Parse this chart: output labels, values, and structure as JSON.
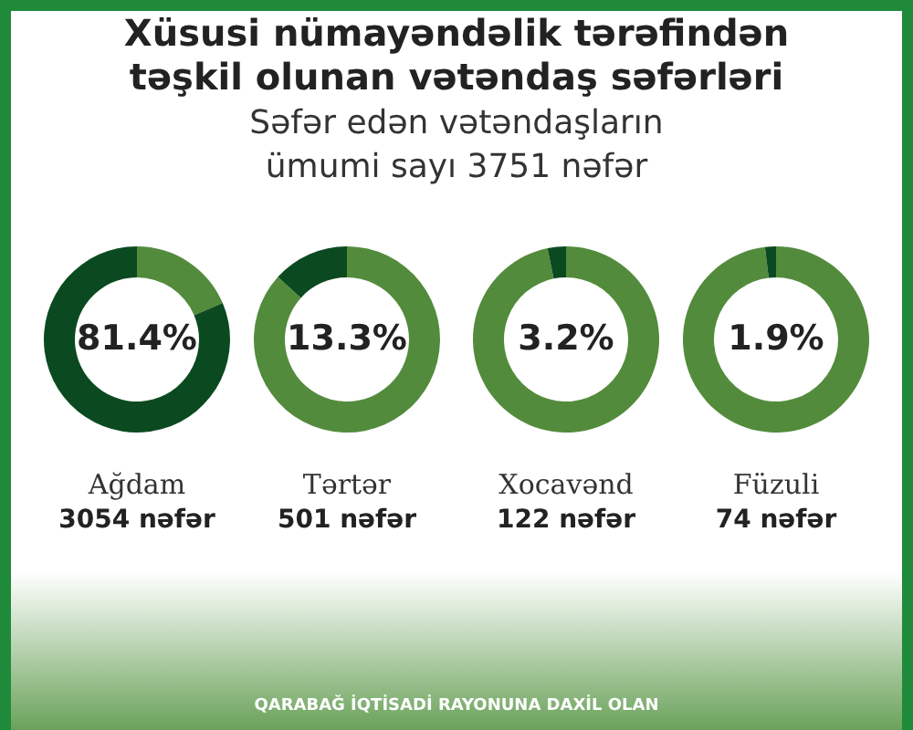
{
  "chart_data": [
    {
      "type": "other",
      "title": "Xüsusi nümayəndəlik tərəfindən təşkil olunan vətəndaş səfərləri",
      "subtitle": "Səfər edən vətəndaşların ümumi sayı 3751 nəfər"
    },
    {
      "type": "donut",
      "title": "Ağdam",
      "categories": [
        null,
        null
      ],
      "values": [
        18.6,
        81.4
      ],
      "colors": [
        "#538b3c",
        "#0b4a20"
      ],
      "annotations": [
        "81.4%",
        "3054 nəfər"
      ]
    },
    {
      "type": "donut",
      "title": "Tərtər",
      "categories": [
        null,
        null
      ],
      "values": [
        86.7,
        13.3
      ],
      "colors": [
        "#538b3c",
        "#0b4a20"
      ],
      "annotations": [
        "13.3%",
        "501 nəfər"
      ]
    },
    {
      "type": "donut",
      "title": "Xocavənd",
      "categories": [
        null,
        null
      ],
      "values": [
        96.8,
        3.2
      ],
      "colors": [
        "#538b3c",
        "#0b4a20"
      ],
      "annotations": [
        "3.2%",
        "122 nəfər"
      ]
    },
    {
      "type": "donut",
      "title": "Füzuli",
      "categories": [
        null,
        null
      ],
      "values": [
        98.1,
        1.9
      ],
      "colors": [
        "#538b3c",
        "#0b4a20"
      ],
      "annotations": [
        "1.9%",
        "74 nəfər"
      ]
    },
    {
      "type": "other",
      "annotations": [
        "QARABAĞ İQTİSADİ RAYONUNA DAXİL OLAN"
      ]
    }
  ]
}
